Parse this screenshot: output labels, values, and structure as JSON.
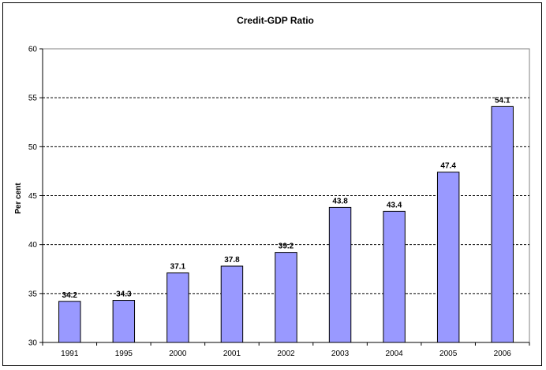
{
  "chart_data": {
    "type": "bar",
    "title": "Credit-GDP Ratio",
    "xlabel": "",
    "ylabel": "Per cent",
    "categories": [
      "1991",
      "1995",
      "2000",
      "2001",
      "2002",
      "2003",
      "2004",
      "2005",
      "2006"
    ],
    "values": [
      34.2,
      34.3,
      37.1,
      37.8,
      39.2,
      43.8,
      43.4,
      47.4,
      54.1
    ],
    "data_labels": [
      "34.2",
      "34.3",
      "37.1",
      "37.8",
      "39.2",
      "43.8",
      "43.4",
      "47.4",
      "54.1"
    ],
    "ylim": [
      30,
      60
    ],
    "yticks": [
      "30",
      "35",
      "40",
      "45",
      "50",
      "55",
      "60"
    ],
    "grid": true,
    "grid_style": "dashed",
    "legend": "none",
    "bar_color": "#9999ff",
    "bar_border_color": "#000000"
  }
}
